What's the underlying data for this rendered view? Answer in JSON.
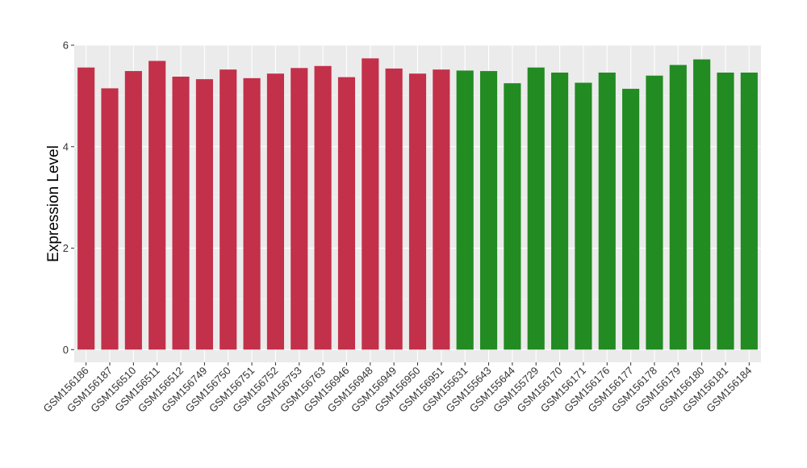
{
  "chart_data": {
    "type": "bar",
    "title": "",
    "xlabel": "",
    "ylabel": "Expression Level",
    "ylim": [
      -0.25,
      6.0
    ],
    "y_ticks": [
      0,
      2,
      4,
      6
    ],
    "grid": true,
    "background": "#EBEBEB",
    "categories": [
      "GSM156186",
      "GSM156187",
      "GSM156510",
      "GSM156511",
      "GSM156512",
      "GSM156749",
      "GSM156750",
      "GSM156751",
      "GSM156752",
      "GSM156753",
      "GSM156763",
      "GSM156946",
      "GSM156948",
      "GSM156949",
      "GSM156950",
      "GSM156951",
      "GSM155631",
      "GSM155643",
      "GSM155644",
      "GSM155729",
      "GSM156170",
      "GSM156171",
      "GSM156176",
      "GSM156177",
      "GSM156178",
      "GSM156179",
      "GSM156180",
      "GSM156181",
      "GSM156184"
    ],
    "values": [
      5.56,
      5.15,
      5.49,
      5.69,
      5.38,
      5.33,
      5.52,
      5.35,
      5.44,
      5.55,
      5.59,
      5.37,
      5.74,
      5.54,
      5.44,
      5.52,
      5.5,
      5.49,
      5.25,
      5.56,
      5.46,
      5.26,
      5.46,
      5.14,
      5.4,
      5.61,
      5.72,
      5.46,
      5.46
    ],
    "groups": [
      0,
      0,
      0,
      0,
      0,
      0,
      0,
      0,
      0,
      0,
      0,
      0,
      0,
      0,
      0,
      0,
      1,
      1,
      1,
      1,
      1,
      1,
      1,
      1,
      1,
      1,
      1,
      1,
      1
    ],
    "group_colors": [
      "#C3304A",
      "#228B22"
    ]
  }
}
